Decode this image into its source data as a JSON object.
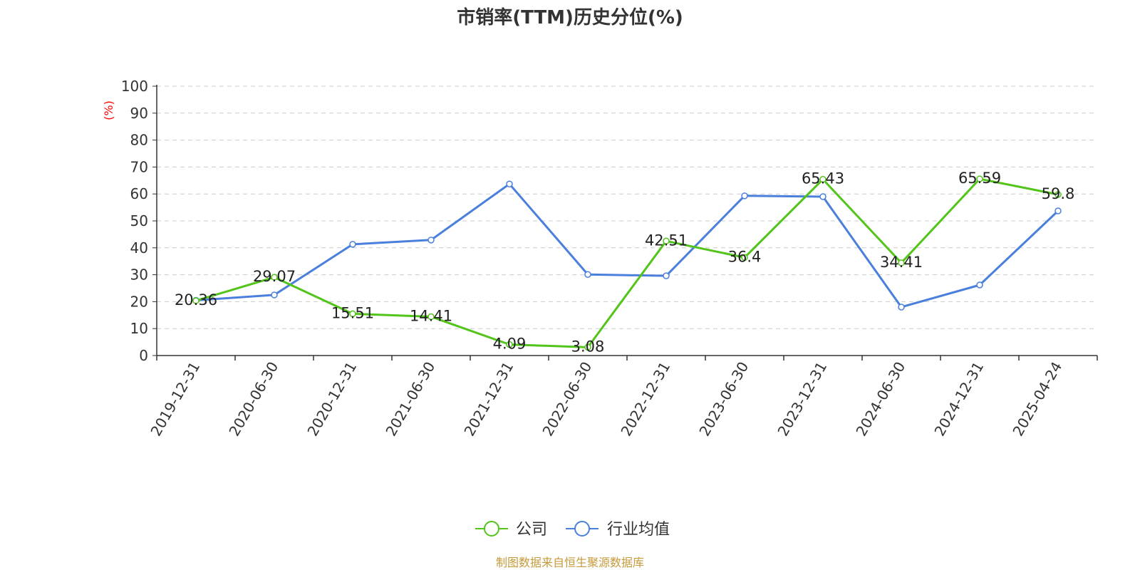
{
  "title": "市销率(TTM)历史分位(%)",
  "footer": "制图数据来自恒生聚源数据库",
  "chart_data": {
    "type": "line",
    "title": "市销率(TTM)历史分位(%)",
    "ylabel": "(%)",
    "xlabel": "",
    "ylim": [
      0,
      100
    ],
    "yticks": [
      "0",
      "10",
      "20",
      "30",
      "40",
      "50",
      "60",
      "70",
      "80",
      "90",
      "100"
    ],
    "grid": true,
    "legend_position": "bottom-center",
    "categories": [
      "2019-12-31",
      "2020-06-30",
      "2020-12-31",
      "2021-06-30",
      "2021-12-31",
      "2022-06-30",
      "2022-12-31",
      "2023-06-30",
      "2023-12-31",
      "2024-06-30",
      "2024-12-31",
      "2025-04-24"
    ],
    "series": [
      {
        "name": "公司",
        "color": "#52c41a",
        "values": [
          20.36,
          29.07,
          15.51,
          14.41,
          4.09,
          3.08,
          42.51,
          36.4,
          65.43,
          34.41,
          65.59,
          59.8
        ],
        "labels": [
          "20.36",
          "29.07",
          "15.51",
          "14.41",
          "4.09",
          "3.08",
          "42.51",
          "36.4",
          "65.43",
          "34.41",
          "65.59",
          "59.8"
        ]
      },
      {
        "name": "行业均值",
        "color": "#4a7fdc",
        "values": [
          20.5,
          22.5,
          41.3,
          42.9,
          63.7,
          30.1,
          29.6,
          59.3,
          59.0,
          18.0,
          26.2,
          53.7
        ]
      }
    ]
  }
}
